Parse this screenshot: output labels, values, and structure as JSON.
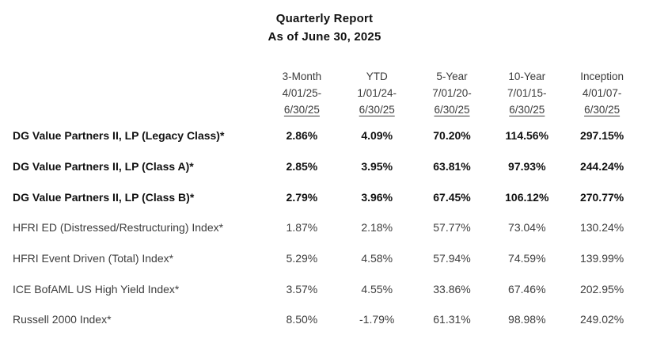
{
  "title": "Quarterly Report",
  "subtitle": "As of June 30, 2025",
  "colors": {
    "background": "#ffffff",
    "fund_row_text": "#111111",
    "index_row_text": "#3d3d3d"
  },
  "table": {
    "columns": [
      {
        "period": "3-Month",
        "start": "4/01/25-",
        "end": "6/30/25"
      },
      {
        "period": "YTD",
        "start": "1/01/24-",
        "end": "6/30/25"
      },
      {
        "period": "5-Year",
        "start": "7/01/20-",
        "end": "6/30/25"
      },
      {
        "period": "10-Year",
        "start": "7/01/15-",
        "end": "6/30/25"
      },
      {
        "period": "Inception",
        "start": "4/01/07-",
        "end": "6/30/25"
      }
    ],
    "rows": [
      {
        "label": "DG Value Partners II, LP (Legacy Class)*",
        "values": [
          "2.86%",
          "4.09%",
          "70.20%",
          "114.56%",
          "297.15%"
        ]
      },
      {
        "label": "DG Value Partners II, LP (Class A)*",
        "values": [
          "2.85%",
          "3.95%",
          "63.81%",
          "97.93%",
          "244.24%"
        ]
      },
      {
        "label": "DG Value Partners II, LP (Class B)*",
        "values": [
          "2.79%",
          "3.96%",
          "67.45%",
          "106.12%",
          "270.77%"
        ]
      },
      {
        "label": "HFRI ED (Distressed/Restructuring) Index*",
        "values": [
          "1.87%",
          "2.18%",
          "57.77%",
          "73.04%",
          "130.24%"
        ]
      },
      {
        "label": "HFRI Event Driven (Total) Index*",
        "values": [
          "5.29%",
          "4.58%",
          "57.94%",
          "74.59%",
          "139.99%"
        ]
      },
      {
        "label": "ICE BofAML US High Yield Index*",
        "values": [
          "3.57%",
          "4.55%",
          "33.86%",
          "67.46%",
          "202.95%"
        ]
      },
      {
        "label": "Russell 2000 Index*",
        "values": [
          "8.50%",
          "-1.79%",
          "61.31%",
          "98.98%",
          "249.02%"
        ]
      }
    ]
  }
}
